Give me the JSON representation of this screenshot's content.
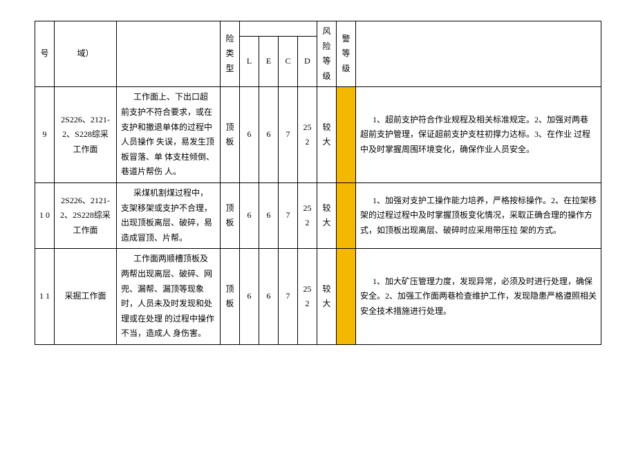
{
  "header": {
    "seq": "号",
    "area": "域）",
    "risk_type": "险 类型",
    "L": "L",
    "E": "E",
    "C": "C",
    "D": "D",
    "risk_level": "风 险等级",
    "warn_level": "警等级"
  },
  "rows": [
    {
      "seq": "9",
      "area": "2S226、2121-2、S228综采工作面",
      "desc": "工作面上、下出口超前支护不符合要求，或在支护和撤退单体的过程中人员操作 失误，易发生顶板冒落、单 体支柱倾倒、巷道片帮伤 人。",
      "type": "顶板",
      "L": "6",
      "E": "6",
      "C": "7",
      "D": "252",
      "level": "较大",
      "measure": "1、超前支护符合作业规程及相关标准规定。2、加强对两巷 超前支护管理，保证超前支护支柱初撑力达标。3、在作业 过程中及时掌握周围环境变化，确保作业人员安全。"
    },
    {
      "seq": "1 0",
      "area": "2S226、2121-2、2S228综采工作面",
      "desc": "采煤机割煤过程中，支架移架或支护不合理，出现顶板离层、破碎，易造成冒顶、片帮。",
      "type": "顶板",
      "L": "6",
      "E": "6",
      "C": "7",
      "D": "252",
      "level": "较大",
      "measure": "1、加强对支护工操作能力培养，严格按标操作。2、在拉架移架的过程过程中及时掌握顶板变化情况，采取正确合理的操作方式，如顶板出现离层、破碎时应采用带压拉 架的方式。"
    },
    {
      "seq": "1 1",
      "area": "采掘工作面",
      "desc": "工作面两顺槽顶板及两帮出现离层、破碎、网兜、漏帮、漏顶等现象时，人员未及时发现和处理或在处理 的过程中操作不当，造成人 身伤害。",
      "type": "顶板",
      "L": "6",
      "E": "6",
      "C": "7",
      "D": "252",
      "level": "较大",
      "measure": "1、加大矿压管理力度，发现异常，必须及时进行处理，确保安全。2、加强工作面两巷检查维护工作，发现隐患严格遵照相关安全技术措施进行处理。"
    }
  ],
  "colors": {
    "warn_bg": "#f5b800",
    "border": "#000000",
    "bg": "#ffffff",
    "text": "#000000"
  }
}
